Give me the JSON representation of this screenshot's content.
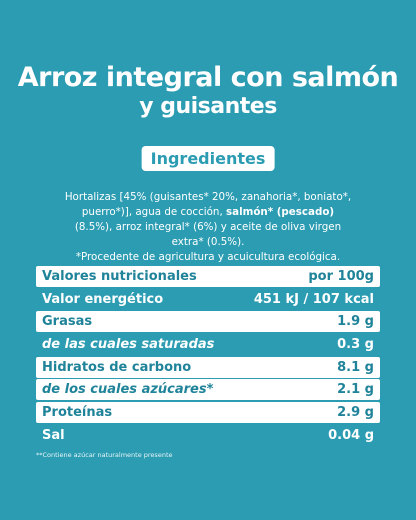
{
  "header": {
    "title_line_1": "Arroz integral con salmón",
    "title_line_2": "y guisantes"
  },
  "ingredients": {
    "heading": "Ingredientes",
    "text_before": "Hortalizas [45% (guisantes* 20%, zanahoria*, boniato*, puerro*)], agua de cocción, ",
    "text_bold": "salmón* (pescado)",
    "text_after": " (8.5%), arroz integral* (6%) y aceite de oliva virgen extra* (0.5%).",
    "note": "*Procedente de agricultura y acuicultura ecológica."
  },
  "table": {
    "rows": [
      [
        "Valores nutricionales",
        "por 100g"
      ],
      [
        "Valor energético",
        "451 kJ / 107 kcal"
      ],
      [
        "Grasas",
        "1.9 g"
      ],
      [
        "de las cuales saturadas",
        "0.3 g"
      ],
      [
        "Hidratos de carbono",
        "8.1 g"
      ],
      [
        "de los cuales azúcares*",
        "2.1 g"
      ],
      [
        "Proteínas",
        "2.9 g"
      ],
      [
        "Sal",
        "0.04 g"
      ]
    ]
  },
  "footnote": "**Contiene azúcar naturalmente presente"
}
